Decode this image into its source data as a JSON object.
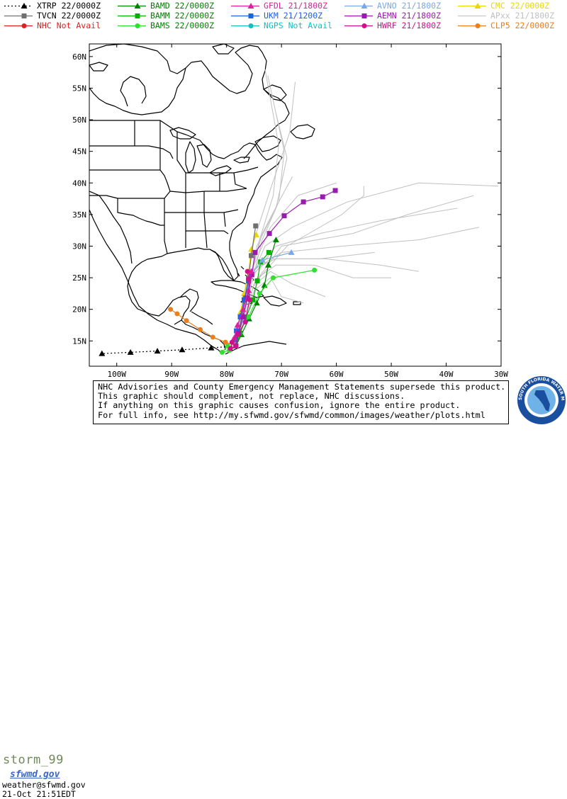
{
  "legend": [
    {
      "label": "XTRP",
      "time": "22/0000Z",
      "color": "#000000",
      "marker": "triangle",
      "dash": "2,3",
      "text_color": "#000000"
    },
    {
      "label": "BAMD",
      "time": "22/0000Z",
      "color": "#008000",
      "marker": "triangle",
      "dash": "",
      "text_color": "#008000"
    },
    {
      "label": "GFDL",
      "time": "21/1800Z",
      "color": "#e0209a",
      "marker": "triangle",
      "dash": "",
      "text_color": "#e0209a"
    },
    {
      "label": "AVNO",
      "time": "21/1800Z",
      "color": "#7aa8e6",
      "marker": "triangle",
      "dash": "",
      "text_color": "#7aa8e6"
    },
    {
      "label": "CMC",
      "time": "22/0000Z",
      "color": "#e8d800",
      "marker": "triangle",
      "dash": "",
      "text_color": "#e8d800"
    },
    {
      "label": "TVCN",
      "time": "22/0000Z",
      "color": "#707070",
      "marker": "square",
      "dash": "",
      "text_color": "#000000"
    },
    {
      "label": "BAMM",
      "time": "22/0000Z",
      "color": "#00b000",
      "marker": "square",
      "dash": "",
      "text_color": "#008000"
    },
    {
      "label": "UKM",
      "time": "21/1200Z",
      "color": "#2060e8",
      "marker": "square",
      "dash": "",
      "text_color": "#2060e8"
    },
    {
      "label": "AEMN",
      "time": "21/1800Z",
      "color": "#9a1ab0",
      "marker": "square",
      "dash": "",
      "text_color": "#9a1ab0"
    },
    {
      "label": "APxx",
      "time": "21/1800Z",
      "color": "#c8c8c8",
      "marker": "none",
      "dash": "",
      "text_color": "#c0c0c0"
    },
    {
      "label": "NHC",
      "time": "Not Avail",
      "color": "#e02020",
      "marker": "circle",
      "dash": "",
      "text_color": "#e02020"
    },
    {
      "label": "BAMS",
      "time": "22/0000Z",
      "color": "#30e030",
      "marker": "circle",
      "dash": "",
      "text_color": "#008000"
    },
    {
      "label": "NGPS",
      "time": "Not Avail",
      "color": "#10c0c0",
      "marker": "circle",
      "dash": "",
      "text_color": "#10c0c0"
    },
    {
      "label": "HWRF",
      "time": "21/1800Z",
      "color": "#d0108a",
      "marker": "circle",
      "dash": "",
      "text_color": "#d0108a"
    },
    {
      "label": "CLP5",
      "time": "22/0000Z",
      "color": "#e88020",
      "marker": "circle",
      "dash": "",
      "text_color": "#e88020"
    }
  ],
  "map": {
    "lat_labels": [
      "60N",
      "55N",
      "50N",
      "45N",
      "40N",
      "35N",
      "30N",
      "25N",
      "20N",
      "15N"
    ],
    "lat_values": [
      60,
      55,
      50,
      45,
      40,
      35,
      30,
      25,
      20,
      15
    ],
    "lon_labels": [
      "100W",
      "90W",
      "80W",
      "70W",
      "60W",
      "50W",
      "40W",
      "30W"
    ],
    "lon_values": [
      -100,
      -90,
      -80,
      -70,
      -60,
      -50,
      -40,
      -30
    ],
    "lon_range": [
      -105,
      -30
    ],
    "lat_range": [
      11,
      62
    ]
  },
  "tracks": [
    {
      "model": "XTRP",
      "color": "#000000",
      "marker": "triangle",
      "dash": "2,3",
      "points": [
        [
          -78.3,
          14.2
        ],
        [
          -82.8,
          13.9
        ],
        [
          -88.1,
          13.6
        ],
        [
          -92.6,
          13.4
        ],
        [
          -97.5,
          13.2
        ],
        [
          -102.7,
          13.0
        ]
      ]
    },
    {
      "model": "CLP5",
      "color": "#e88020",
      "marker": "circle",
      "points": [
        [
          -78.3,
          14.2
        ],
        [
          -80.2,
          14.8
        ],
        [
          -82.5,
          15.6
        ],
        [
          -84.8,
          16.8
        ],
        [
          -87.3,
          18.2
        ],
        [
          -89.0,
          19.3
        ],
        [
          -90.2,
          20.0
        ]
      ]
    },
    {
      "model": "BAMD",
      "color": "#008000",
      "marker": "triangle",
      "points": [
        [
          -78.3,
          14.2
        ],
        [
          -77.3,
          16.0
        ],
        [
          -75.9,
          18.5
        ],
        [
          -74.5,
          21.0
        ],
        [
          -73.1,
          23.8
        ],
        [
          -72.4,
          27.0
        ],
        [
          -71.0,
          31.0
        ]
      ]
    },
    {
      "model": "BAMM",
      "color": "#00b000",
      "marker": "square",
      "points": [
        [
          -78.3,
          14.2
        ],
        [
          -77.5,
          16.2
        ],
        [
          -76.4,
          18.8
        ],
        [
          -75.2,
          21.5
        ],
        [
          -74.4,
          24.5
        ],
        [
          -73.8,
          27.5
        ],
        [
          -72.3,
          29.0
        ]
      ]
    },
    {
      "model": "BAMS",
      "color": "#30e030",
      "marker": "circle",
      "points": [
        [
          -78.3,
          14.2
        ],
        [
          -79.5,
          13.5
        ],
        [
          -80.8,
          13.2
        ],
        [
          -79.8,
          14.2
        ],
        [
          -78.0,
          16.0
        ],
        [
          -76.0,
          18.8
        ],
        [
          -74.0,
          22.5
        ],
        [
          -71.5,
          25.0
        ],
        [
          -64.0,
          26.2
        ]
      ]
    },
    {
      "model": "AVNO",
      "color": "#7aa8e6",
      "marker": "triangle",
      "points": [
        [
          -78.3,
          14.2
        ],
        [
          -77.8,
          16.5
        ],
        [
          -77.0,
          19.0
        ],
        [
          -76.5,
          22.0
        ],
        [
          -75.5,
          25.5
        ],
        [
          -73.5,
          27.8
        ],
        [
          -68.2,
          29.0
        ]
      ]
    },
    {
      "model": "CMC",
      "color": "#e8d800",
      "marker": "triangle",
      "points": [
        [
          -78.3,
          14.2
        ],
        [
          -78.0,
          16.8
        ],
        [
          -77.5,
          19.5
        ],
        [
          -76.8,
          22.5
        ],
        [
          -76.0,
          26.0
        ],
        [
          -75.5,
          29.5
        ],
        [
          -74.6,
          31.8
        ]
      ]
    },
    {
      "model": "TVCN",
      "color": "#707070",
      "marker": "square",
      "points": [
        [
          -78.3,
          14.2
        ],
        [
          -77.8,
          16.5
        ],
        [
          -77.2,
          19.0
        ],
        [
          -76.6,
          21.8
        ],
        [
          -76.0,
          24.8
        ],
        [
          -75.5,
          28.5
        ],
        [
          -74.7,
          33.2
        ]
      ]
    },
    {
      "model": "UKM",
      "color": "#2060e8",
      "marker": "square",
      "points": [
        [
          -78.3,
          14.2
        ],
        [
          -78.5,
          15.2
        ],
        [
          -78.2,
          16.6
        ],
        [
          -77.5,
          18.8
        ],
        [
          -76.8,
          21.5
        ],
        [
          -76.0,
          24.5
        ]
      ]
    },
    {
      "model": "AEMN",
      "color": "#9a1ab0",
      "marker": "square",
      "points": [
        [
          -78.3,
          14.2
        ],
        [
          -77.8,
          16.2
        ],
        [
          -77.0,
          18.8
        ],
        [
          -76.2,
          21.8
        ],
        [
          -75.4,
          25.5
        ],
        [
          -74.8,
          29.0
        ],
        [
          -72.2,
          32.0
        ],
        [
          -69.5,
          34.8
        ],
        [
          -66.0,
          37.0
        ],
        [
          -62.5,
          37.8
        ],
        [
          -60.2,
          38.8
        ]
      ]
    },
    {
      "model": "GFDL",
      "color": "#e0209a",
      "marker": "triangle",
      "points": [
        [
          -78.3,
          14.2
        ],
        [
          -78.6,
          15.5
        ],
        [
          -78.0,
          17.5
        ],
        [
          -77.0,
          20.0
        ],
        [
          -76.0,
          23.0
        ],
        [
          -75.5,
          26.0
        ]
      ]
    },
    {
      "model": "HWRF",
      "color": "#d0108a",
      "marker": "circle",
      "points": [
        [
          -78.3,
          14.2
        ],
        [
          -79.3,
          13.8
        ],
        [
          -79.0,
          14.8
        ],
        [
          -78.0,
          16.0
        ],
        [
          -76.6,
          18.0
        ],
        [
          -75.8,
          21.5
        ],
        [
          -76.0,
          24.8
        ],
        [
          -76.2,
          26.0
        ]
      ]
    }
  ],
  "ensemble_tracks": [
    [
      [
        -78.3,
        14.2
      ],
      [
        -76,
        22
      ],
      [
        -74.5,
        30
      ],
      [
        -71,
        36
      ],
      [
        -69,
        44
      ],
      [
        -71,
        51
      ]
    ],
    [
      [
        -78.3,
        14.2
      ],
      [
        -76,
        22
      ],
      [
        -73.5,
        31
      ],
      [
        -70.5,
        37
      ],
      [
        -69.5,
        45
      ],
      [
        -72.5,
        57
      ]
    ],
    [
      [
        -78.3,
        14.2
      ],
      [
        -76,
        23
      ],
      [
        -74,
        31
      ],
      [
        -71.5,
        38
      ],
      [
        -70.5,
        46
      ],
      [
        -73,
        58
      ]
    ],
    [
      [
        -78.3,
        14.2
      ],
      [
        -76.5,
        23
      ],
      [
        -75,
        31
      ],
      [
        -72,
        39
      ],
      [
        -68.5,
        48
      ],
      [
        -67.5,
        56
      ]
    ],
    [
      [
        -78.3,
        14.2
      ],
      [
        -76,
        24
      ],
      [
        -73,
        30
      ],
      [
        -68,
        33
      ],
      [
        -58,
        37
      ],
      [
        -45,
        40
      ],
      [
        -30.5,
        39.5
      ]
    ],
    [
      [
        -78.3,
        14.2
      ],
      [
        -75.5,
        25
      ],
      [
        -71,
        30
      ],
      [
        -63,
        32
      ],
      [
        -52,
        34
      ],
      [
        -38,
        36
      ]
    ],
    [
      [
        -78.3,
        14.2
      ],
      [
        -75.5,
        26
      ],
      [
        -70,
        29
      ],
      [
        -59,
        30
      ],
      [
        -45,
        31
      ],
      [
        -34,
        33
      ]
    ],
    [
      [
        -78.3,
        14.2
      ],
      [
        -76,
        26
      ],
      [
        -71,
        28
      ],
      [
        -62,
        28
      ],
      [
        -52,
        27
      ],
      [
        -45,
        26
      ]
    ],
    [
      [
        -78.3,
        14.2
      ],
      [
        -76,
        25
      ],
      [
        -72,
        28
      ],
      [
        -63,
        28
      ],
      [
        -53,
        29
      ]
    ],
    [
      [
        -78.3,
        14.2
      ],
      [
        -76,
        24
      ],
      [
        -71,
        27
      ],
      [
        -64,
        27
      ],
      [
        -57,
        25
      ],
      [
        -50,
        25
      ]
    ],
    [
      [
        -78.3,
        14.2
      ],
      [
        -76,
        23
      ],
      [
        -72,
        26
      ],
      [
        -68,
        24
      ],
      [
        -62,
        22
      ]
    ],
    [
      [
        -78.3,
        14.2
      ],
      [
        -75,
        23
      ],
      [
        -72,
        25
      ],
      [
        -70,
        22
      ],
      [
        -66,
        21
      ]
    ],
    [
      [
        -78.3,
        14.2
      ],
      [
        -75,
        24
      ],
      [
        -69,
        30
      ],
      [
        -59,
        35
      ],
      [
        -55,
        38
      ],
      [
        -55,
        39.5
      ]
    ],
    [
      [
        -78.3,
        14.2
      ],
      [
        -75,
        24
      ],
      [
        -70,
        30
      ],
      [
        -57,
        32
      ],
      [
        -47,
        35
      ],
      [
        -35,
        38
      ]
    ],
    [
      [
        -78.3,
        14.2
      ],
      [
        -76,
        25
      ],
      [
        -72,
        33
      ],
      [
        -67,
        38
      ],
      [
        -60,
        40
      ]
    ],
    [
      [
        -78.3,
        14.2
      ],
      [
        -76,
        24
      ],
      [
        -73.5,
        32
      ],
      [
        -70.5,
        37
      ],
      [
        -68,
        41
      ]
    ]
  ],
  "footer": {
    "storm_name": "storm_99",
    "site_logo": "sfwmd.gov",
    "email": "weather@sfwmd.gov",
    "timestamp": "21-Oct 21:51EDT",
    "notice_lines": [
      "NHC Advisories and County Emergency Management Statements supersede this product.",
      "This graphic should complement, not replace, NHC discussions.",
      "If anything on this graphic causes confusion, ignore the entire product.",
      "For full info, see  http://my.sfwmd.gov/sfwmd/common/images/weather/plots.html"
    ],
    "seal_text": "SOUTH FLORIDA WATER MANAGEMENT DISTRICT"
  }
}
